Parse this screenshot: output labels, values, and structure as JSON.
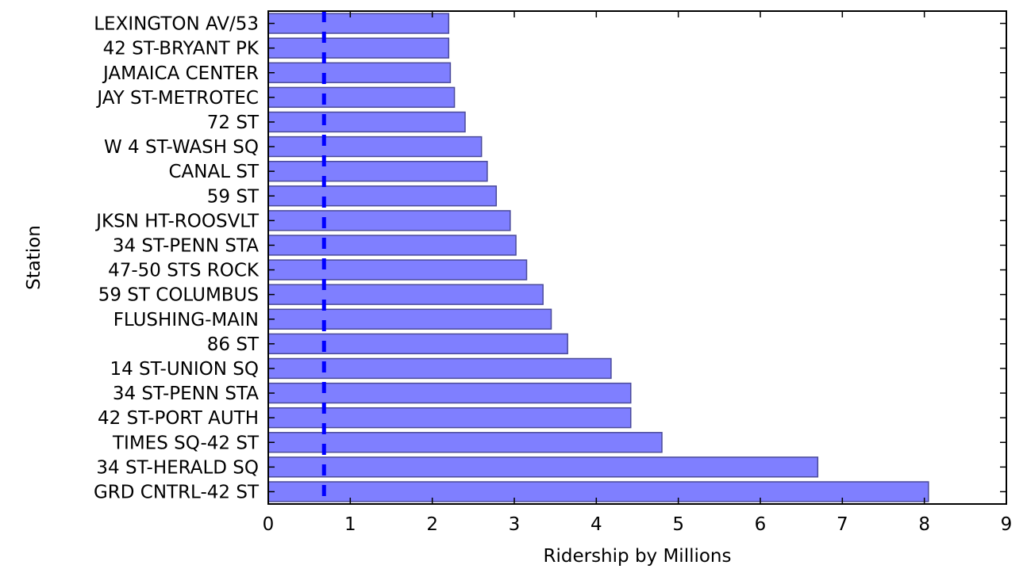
{
  "chart_data": {
    "type": "bar",
    "orientation": "horizontal",
    "title": "",
    "xlabel": "Ridership by Millions",
    "ylabel": "Station",
    "xlim": [
      0,
      9
    ],
    "xticks": [
      "0",
      "1",
      "2",
      "3",
      "4",
      "5",
      "6",
      "7",
      "8",
      "9"
    ],
    "grid": false,
    "categories": [
      "GRD CNTRL-42 ST",
      "34 ST-HERALD SQ",
      "TIMES SQ-42 ST",
      "42 ST-PORT AUTH",
      "34 ST-PENN STA",
      "14 ST-UNION SQ",
      "86 ST",
      "FLUSHING-MAIN",
      "59 ST COLUMBUS",
      "47-50 STS ROCK",
      "34 ST-PENN STA",
      "JKSN HT-ROOSVLT",
      "59 ST",
      "CANAL ST",
      "W 4 ST-WASH SQ",
      "72 ST",
      "JAY ST-METROTEC",
      "JAMAICA CENTER",
      "42 ST-BRYANT PK",
      "LEXINGTON AV/53"
    ],
    "values": [
      8.05,
      6.7,
      4.8,
      4.42,
      4.42,
      4.18,
      3.65,
      3.45,
      3.35,
      3.15,
      3.02,
      2.95,
      2.78,
      2.67,
      2.6,
      2.4,
      2.27,
      2.22,
      2.2,
      2.2
    ],
    "reference_line": {
      "value": 0.68,
      "style": "dashed"
    },
    "colors": {
      "bar_fill": "#7f7fff",
      "bar_edge": "#4a4a99",
      "reference_line": "#0000ff",
      "axis": "#000000"
    }
  }
}
